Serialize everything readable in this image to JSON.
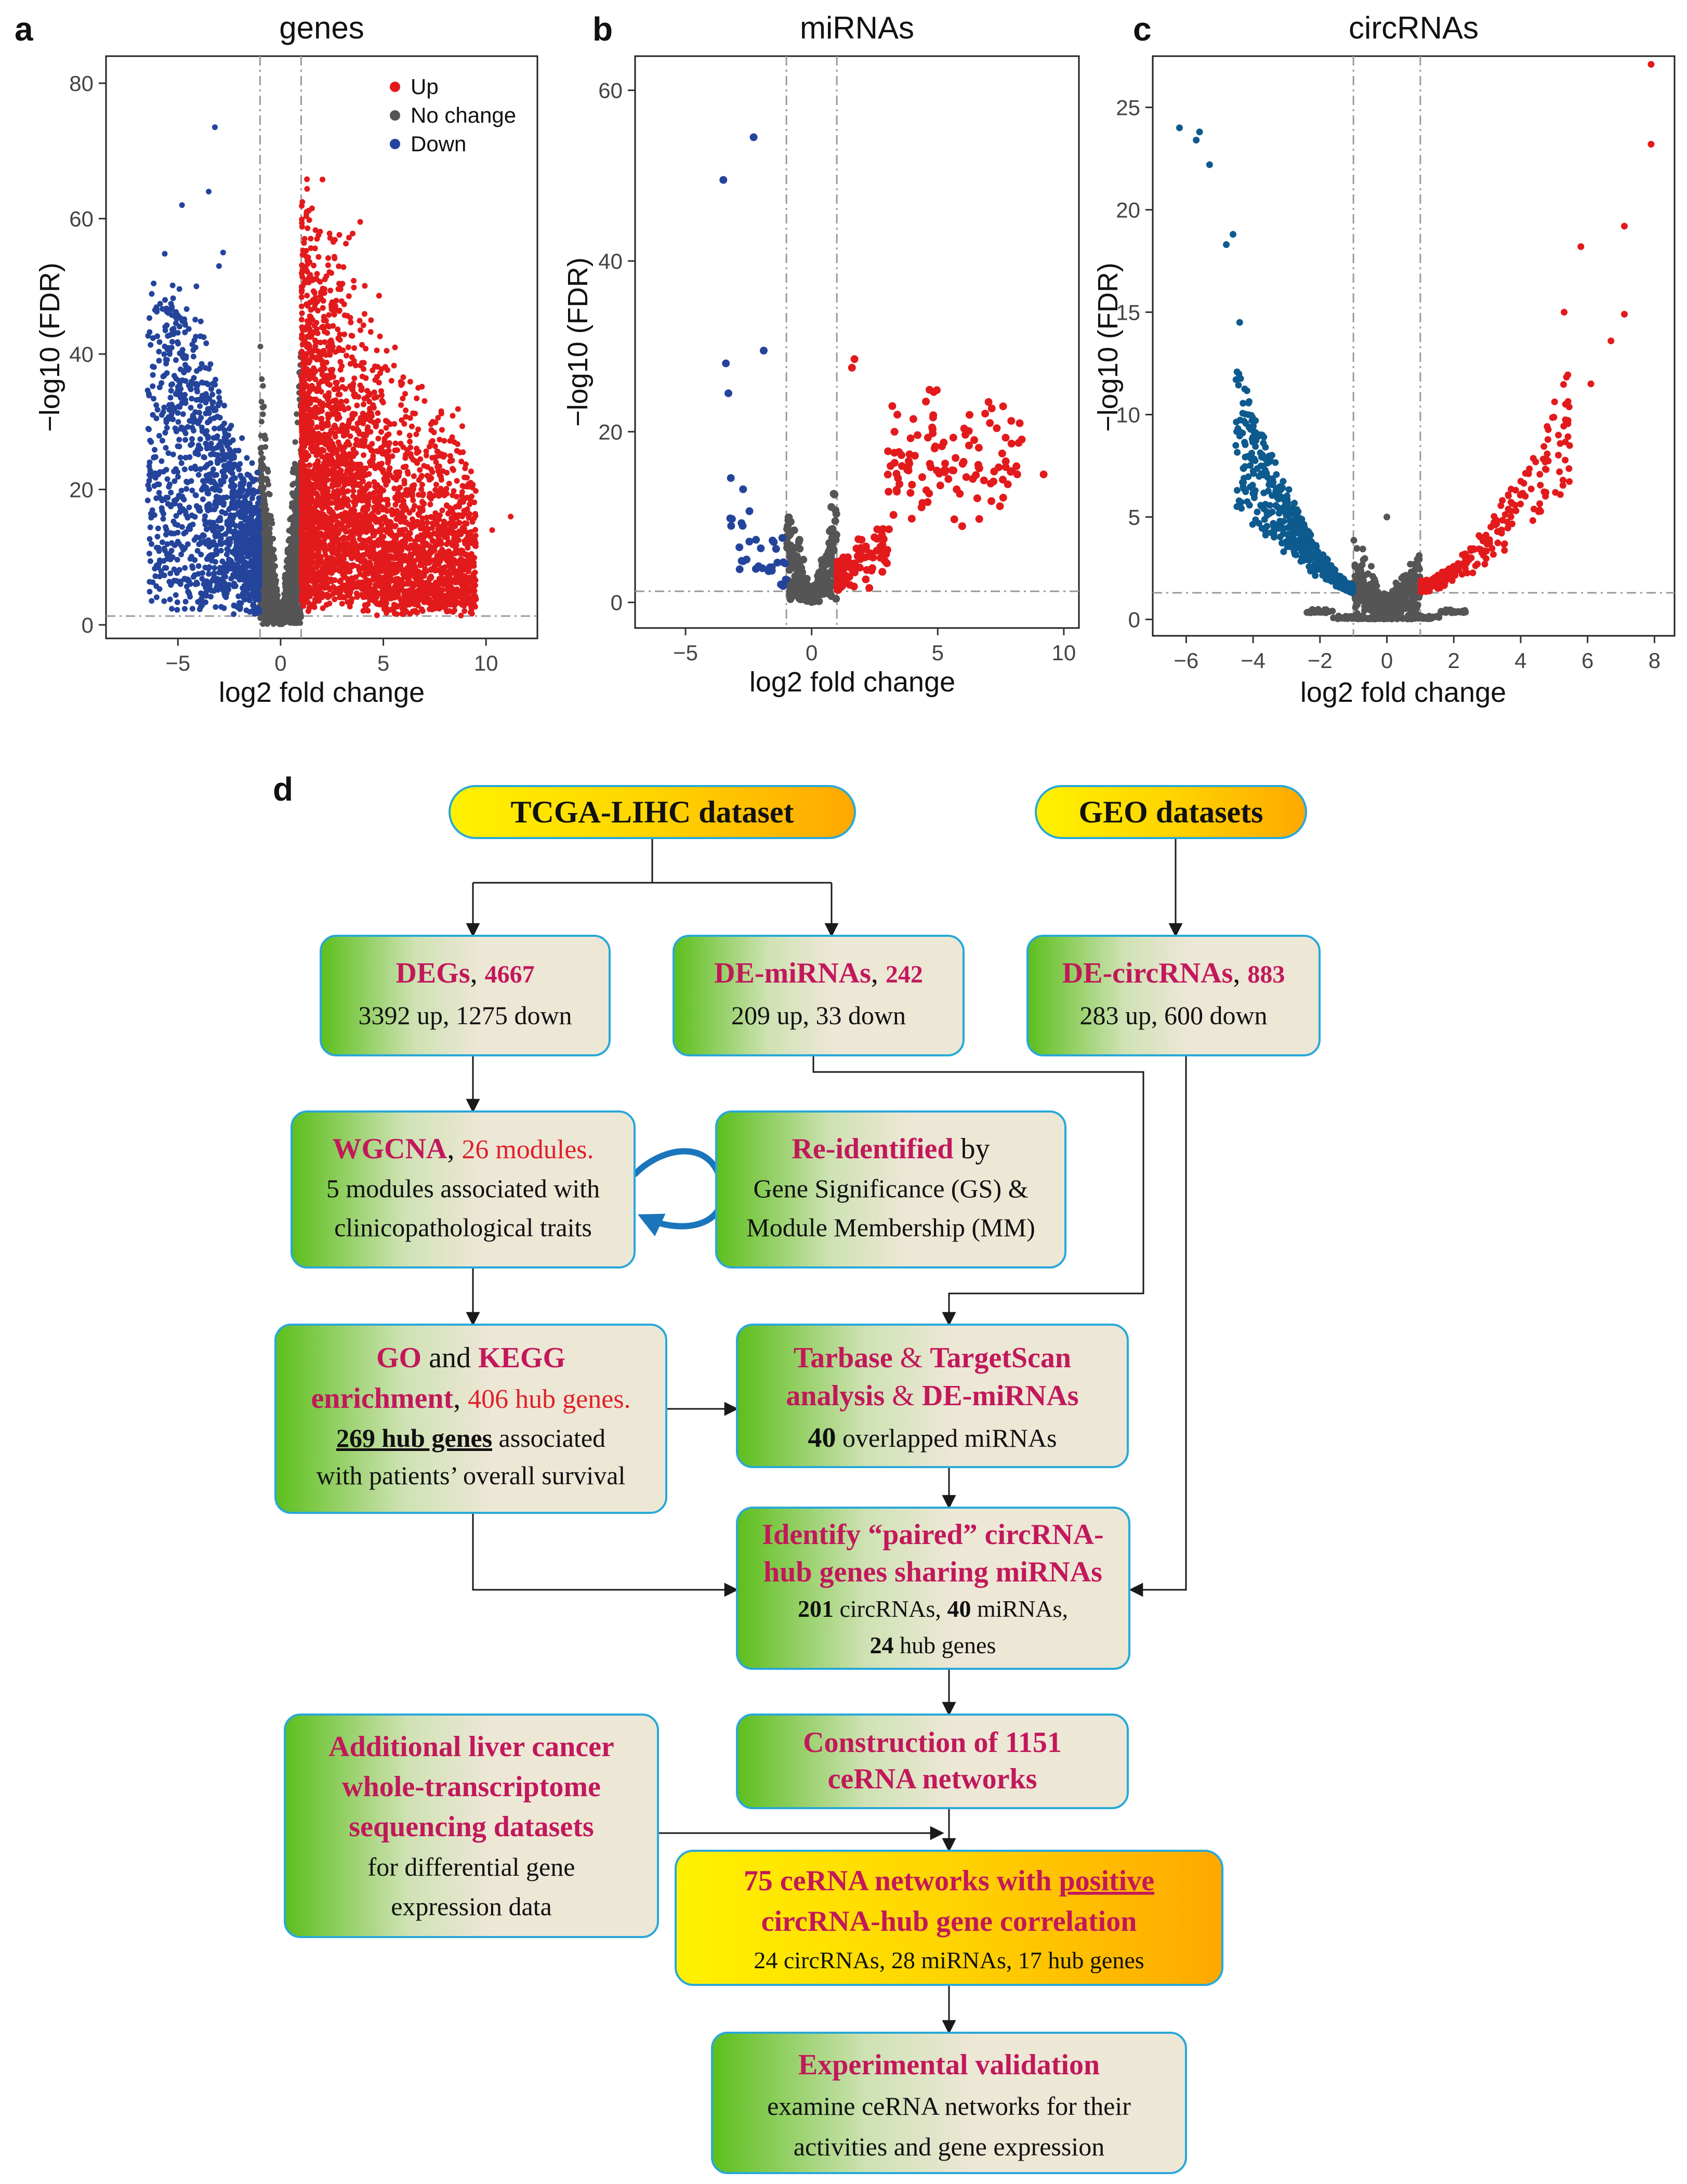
{
  "panels": {
    "a": {
      "letter": "a",
      "title": "genes"
    },
    "b": {
      "letter": "b",
      "title": "miRNAs"
    },
    "c": {
      "letter": "c",
      "title": "circRNAs"
    },
    "d": {
      "letter": "d"
    }
  },
  "legend": {
    "up": "Up",
    "no_change": "No change",
    "down": "Down"
  },
  "colors": {
    "up": "#e31a1c",
    "down_a": "#24449c",
    "down_c": "#0d5a8e",
    "no_change": "#555555",
    "pink": "#c2185b",
    "red": "#e0202a"
  },
  "chart_data": [
    {
      "type": "scatter",
      "title": "genes",
      "xlabel": "log2 fold change",
      "ylabel": "−log10 (FDR)",
      "xlim": [
        -8.5,
        12.5
      ],
      "ylim": [
        -2,
        84
      ],
      "xticks": [
        -5,
        0,
        5,
        10
      ],
      "yticks": [
        0,
        20,
        40,
        60,
        80
      ],
      "threshold_x": [
        -1,
        1
      ],
      "threshold_y": 1.3,
      "legend": [
        "Up",
        "No change",
        "Down"
      ],
      "counts": {
        "up": 3392,
        "down": 1275
      },
      "seed": 11,
      "x_spread_up": 8.5,
      "x_spread_down": 5.5,
      "y_max": 50,
      "highlights": {
        "down": [
          [
            -3.2,
            73.5
          ],
          [
            -3.5,
            64
          ],
          [
            -4.8,
            62
          ],
          [
            -2.8,
            55
          ],
          [
            -3.0,
            53
          ],
          [
            -4.1,
            50
          ],
          [
            -5.4,
            40
          ]
        ],
        "up": [
          [
            4.4,
            45
          ],
          [
            5.2,
            30
          ],
          [
            10.3,
            14
          ],
          [
            11.2,
            16
          ],
          [
            8.5,
            12
          ]
        ]
      }
    },
    {
      "type": "scatter",
      "title": "miRNAs",
      "xlabel": "log2 fold change",
      "ylabel": "−log10 (FDR)",
      "xlim": [
        -7,
        10.6
      ],
      "ylim": [
        -3,
        64
      ],
      "xticks": [
        -5,
        0,
        5,
        10
      ],
      "yticks": [
        0,
        20,
        40,
        60
      ],
      "threshold_x": [
        -1,
        1
      ],
      "threshold_y": 1.3,
      "counts": {
        "up": 209,
        "down": 33
      },
      "seed": 23,
      "x_spread_up": 7.5,
      "x_spread_down": 3.0,
      "y_max": 14,
      "highlights": {
        "down": [
          [
            -2.3,
            54.5
          ],
          [
            -3.5,
            49.5
          ],
          [
            -1.9,
            29.5
          ],
          [
            -3.4,
            28
          ],
          [
            -3.3,
            24.5
          ]
        ],
        "up": [
          [
            1.7,
            28.5
          ],
          [
            1.6,
            27.5
          ],
          [
            3.4,
            22
          ],
          [
            3.2,
            23
          ],
          [
            9.2,
            15
          ]
        ]
      }
    },
    {
      "type": "scatter",
      "title": "circRNAs",
      "xlabel": "log2 fold change",
      "ylabel": "−log10 (FDR)",
      "xlim": [
        -7,
        8.6
      ],
      "ylim": [
        -0.8,
        27.5
      ],
      "xticks": [
        -6,
        -4,
        -2,
        0,
        2,
        4,
        6,
        8
      ],
      "yticks": [
        0,
        5,
        10,
        15,
        20,
        25
      ],
      "threshold_x": [
        -1,
        1
      ],
      "threshold_y": 1.3,
      "counts": {
        "up": 283,
        "down": 600
      },
      "seed": 37,
      "x_spread_up": 4.5,
      "x_spread_down": 3.5,
      "y_max": 10,
      "highlights": {
        "down": [
          [
            -6.2,
            24
          ],
          [
            -5.6,
            23.8
          ],
          [
            -5.7,
            23.4
          ],
          [
            -5.3,
            22.2
          ],
          [
            -4.6,
            18.8
          ],
          [
            -4.8,
            18.3
          ],
          [
            -4.4,
            14.5
          ]
        ],
        "up": [
          [
            7.9,
            27.1
          ],
          [
            7.9,
            23.2
          ],
          [
            7.1,
            19.2
          ],
          [
            5.8,
            18.2
          ],
          [
            5.3,
            15
          ],
          [
            7.1,
            14.9
          ],
          [
            6.7,
            13.6
          ],
          [
            6.1,
            11.5
          ]
        ]
      }
    }
  ],
  "flowchart": {
    "tcga": "TCGA-LIHC dataset",
    "geo": "GEO datasets",
    "degs": {
      "name": "DEGs",
      "sep": ", ",
      "count": "4667",
      "line2": "3392 up, 1275 down"
    },
    "demirnas": {
      "name": "DE-miRNAs",
      "sep": ", ",
      "count": "242",
      "line2": "209 up, 33 down"
    },
    "decirc": {
      "name": "DE-circRNAs",
      "sep": ", ",
      "count": "883",
      "line2": "283 up, 600 down"
    },
    "wgcna": {
      "name": "WGCNA",
      "sep": ", ",
      "modules": "26 modules.",
      "line2": "5 modules associated with",
      "line3": "clinicopathological traits"
    },
    "reid": {
      "head": "Re-identified",
      "by": " by",
      "line2": "Gene Significance (GS) &",
      "line3": "Module Membership (MM)"
    },
    "go": {
      "go": "GO",
      "and": " and ",
      "kegg": "KEGG",
      "enrich": "enrichment",
      "sep": ", ",
      "hub": "406 hub genes.",
      "hub269": "269 hub genes",
      "assoc": " associated",
      "line4": "with patients’ overall survival"
    },
    "tarbase": {
      "tarbase": "Tarbase",
      "amp": " & ",
      "targetscan": "TargetScan",
      "analysis": "analysis",
      "amp2": " & ",
      "demirnas": "DE-miRNAs",
      "n40": "40",
      "overlap": " overlapped miRNAs"
    },
    "identify": {
      "line1": "Identify “paired” circRNA-",
      "line2": "hub genes sharing miRNAs",
      "n201": "201",
      "circ": " circRNAs, ",
      "n40": "40",
      "mir": " miRNAs,",
      "n24": "24",
      "hub": " hub genes"
    },
    "construction": {
      "line1": "Construction of 1151",
      "line2": "ceRNA networks"
    },
    "additional": {
      "line1": "Additional liver cancer",
      "line2": "whole-transcriptome",
      "line3": "sequencing datasets",
      "line4": "for differential gene",
      "line5": "expression data"
    },
    "final": {
      "pre": "75 ceRNA networks with ",
      "positive": "positive",
      "line2": "circRNA-hub gene correlation",
      "line3": "24 circRNAs, 28 miRNAs, 17 hub genes"
    },
    "exp": {
      "line1": "Experimental validation",
      "line2": "examine ceRNA networks for their",
      "line3": "activities and gene expression"
    }
  }
}
